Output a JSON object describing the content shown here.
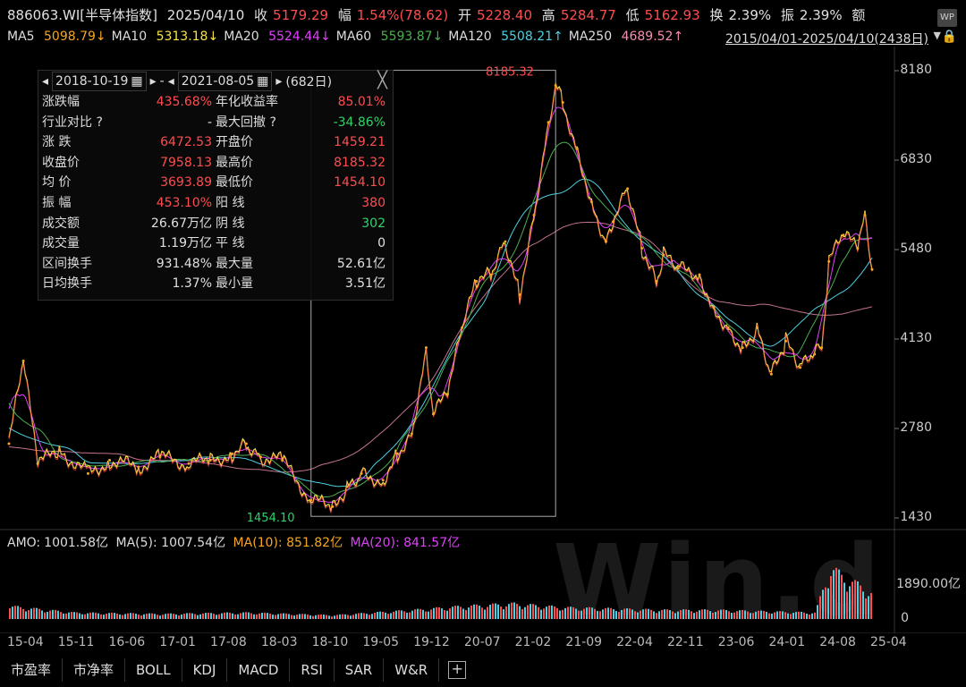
{
  "header": {
    "code": "886063.WI[半导体指数]",
    "date": "2025/04/10",
    "close_label": "收",
    "close": "5179.29",
    "chg_label": "幅",
    "chg": "1.54%(78.62)",
    "open_label": "开",
    "open": "5228.40",
    "high_label": "高",
    "high": "5284.77",
    "low_label": "低",
    "low": "5162.93",
    "turnover_label": "换",
    "turnover": "2.39%",
    "amp_label": "振",
    "amp": "2.39%",
    "amount_label": "额",
    "wp_icon_text": "WP"
  },
  "ma_line": [
    {
      "label": "MA5",
      "value": "5098.79↓",
      "color": "#f5a623"
    },
    {
      "label": "MA10",
      "value": "5313.18↓",
      "color": "#f5e342"
    },
    {
      "label": "MA20",
      "value": "5524.44↓",
      "color": "#e040fb"
    },
    {
      "label": "MA60",
      "value": "5593.87↓",
      "color": "#4caf50"
    },
    {
      "label": "MA120",
      "value": "5508.21↑",
      "color": "#4dd0e1"
    },
    {
      "label": "MA250",
      "value": "4689.52↑",
      "color": "#f48fb1"
    }
  ],
  "date_range": "2015/04/01-2025/04/10(2438日)",
  "panel": {
    "start": "2018-10-19",
    "sep": "-",
    "end": "2021-08-05",
    "days": "(682日)",
    "rows": [
      [
        "涨跌幅",
        "435.68%",
        "年化收益率",
        "85.01%"
      ],
      [
        "行业对比 ?",
        "-",
        "最大回撤 ?",
        "-34.86%"
      ],
      [
        "涨 跌",
        "6472.53",
        "开盘价",
        "1459.21"
      ],
      [
        "收盘价",
        "7958.13",
        "最高价",
        "8185.32"
      ],
      [
        "均 价",
        "3693.89",
        "最低价",
        "1454.10"
      ],
      [
        "振 幅",
        "453.10%",
        "阳 线",
        "380"
      ],
      [
        "成交额",
        "26.67万亿",
        "阴 线",
        "302"
      ],
      [
        "成交量",
        "1.19万亿",
        "平 线",
        "0"
      ],
      [
        "区间换手",
        "931.48%",
        "最大量",
        "52.61亿"
      ],
      [
        "日均换手",
        "1.37%",
        "最小量",
        "3.51亿"
      ]
    ],
    "colors": [
      [
        "#ff4d4f",
        "#ff4d4f"
      ],
      [
        "#e0e0e0",
        "#2fd36a"
      ],
      [
        "#ff4d4f",
        "#ff4d4f"
      ],
      [
        "#ff4d4f",
        "#ff4d4f"
      ],
      [
        "#ff4d4f",
        "#ff4d4f"
      ],
      [
        "#ff4d4f",
        "#ff4d4f"
      ],
      [
        "#e0e0e0",
        "#2fd36a"
      ],
      [
        "#e0e0e0",
        "#e0e0e0"
      ],
      [
        "#e0e0e0",
        "#e0e0e0"
      ],
      [
        "#e0e0e0",
        "#e0e0e0"
      ]
    ]
  },
  "markers": {
    "high": "8185.32",
    "low": "1454.10"
  },
  "amo": {
    "label": "AMO:",
    "value": "1001.58亿",
    "ma5": "MA(5): 1007.54亿",
    "ma10": "MA(10): 851.82亿",
    "ma20": "MA(20): 841.57亿"
  },
  "volume_axis": {
    "top": "1890.00亿",
    "zero": "0"
  },
  "watermark": "Win.d",
  "tabs": [
    "市盈率",
    "市净率",
    "BOLL",
    "KDJ",
    "MACD",
    "RSI",
    "SAR",
    "W&R"
  ],
  "chart_data": {
    "type": "line",
    "title": "886063.WI[半导体指数]",
    "xlabel": "",
    "ylabel": "",
    "ylim": [
      1430,
      8180
    ],
    "yticks": [
      8180,
      6830,
      5480,
      4130,
      2780,
      1430
    ],
    "xticks": [
      "15-04",
      "15-11",
      "16-06",
      "17-01",
      "17-08",
      "18-03",
      "18-10",
      "19-05",
      "19-12",
      "20-07",
      "21-02",
      "21-09",
      "22-04",
      "22-11",
      "23-06",
      "24-01",
      "24-08",
      "25-04"
    ],
    "legend": "top",
    "grid": false,
    "series": [
      {
        "name": "收盘价",
        "x": [
          "2015-04",
          "2015-06",
          "2015-08",
          "2015-11",
          "2016-03",
          "2016-06",
          "2016-10",
          "2017-01",
          "2017-05",
          "2017-08",
          "2017-11",
          "2018-01",
          "2018-03",
          "2018-06",
          "2018-10",
          "2019-01",
          "2019-03",
          "2019-05",
          "2019-08",
          "2019-10",
          "2019-12",
          "2020-02",
          "2020-03",
          "2020-05",
          "2020-07",
          "2020-09",
          "2020-11",
          "2021-01",
          "2021-03",
          "2021-05",
          "2021-07",
          "2021-08",
          "2021-09",
          "2021-11",
          "2022-01",
          "2022-03",
          "2022-04",
          "2022-06",
          "2022-08",
          "2022-10",
          "2022-11",
          "2023-01",
          "2023-04",
          "2023-06",
          "2023-08",
          "2023-10",
          "2023-12",
          "2024-02",
          "2024-04",
          "2024-06",
          "2024-08",
          "2024-09",
          "2024-10",
          "2024-12",
          "2025-02",
          "2025-03",
          "2025-04"
        ],
        "values": [
          2550,
          3800,
          2250,
          2450,
          2100,
          2300,
          2200,
          2350,
          2250,
          2300,
          2400,
          2550,
          2350,
          2300,
          1700,
          1600,
          1900,
          2100,
          2000,
          2400,
          2700,
          4000,
          3000,
          3300,
          4300,
          5000,
          5100,
          5600,
          4800,
          6000,
          7400,
          7958,
          7700,
          7000,
          6200,
          5600,
          5900,
          6400,
          5500,
          5000,
          5400,
          5200,
          5100,
          4600,
          4300,
          4000,
          4300,
          3600,
          4100,
          3700,
          3900,
          4000,
          5300,
          5700,
          5500,
          6000,
          5179
        ]
      }
    ],
    "volume": {
      "name": "AMO",
      "unit": "亿",
      "ylim": [
        0,
        2400
      ],
      "x": [
        "2015-04",
        "2016-01",
        "2017-01",
        "2018-01",
        "2019-01",
        "2019-12",
        "2020-07",
        "2021-02",
        "2021-09",
        "2022-04",
        "2022-11",
        "2023-06",
        "2024-01",
        "2024-08",
        "2024-10",
        "2025-04"
      ],
      "values": [
        500,
        250,
        200,
        250,
        150,
        350,
        500,
        600,
        450,
        400,
        350,
        350,
        300,
        250,
        2000,
        1001.58
      ]
    }
  }
}
